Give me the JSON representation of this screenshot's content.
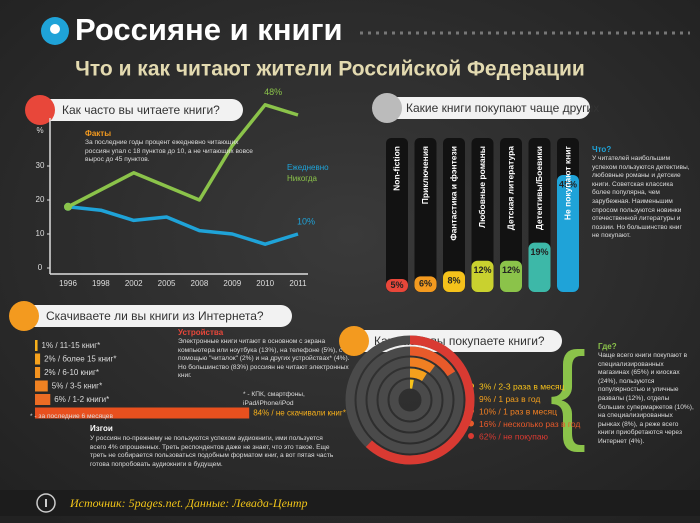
{
  "header": {
    "title": "Россияне и книги",
    "subtitle": "Что и как читают жители Российской Федерации"
  },
  "chart_data": [
    {
      "type": "line",
      "title": "Как часто вы читаете книги?",
      "y_label": "%",
      "categories": [
        "1996",
        "1998",
        "2002",
        "2005",
        "2008",
        "2009",
        "2010",
        "2011"
      ],
      "series": [
        {
          "name": "Ежедневно",
          "color": "#1fa3d8",
          "values": [
            18,
            17,
            14,
            15,
            11,
            10,
            7,
            10
          ],
          "value_labels": [
            null,
            null,
            null,
            null,
            null,
            null,
            null,
            "10%"
          ]
        },
        {
          "name": "Никогда",
          "color": "#8bc34a",
          "values": [
            18,
            23,
            28,
            24,
            20,
            36,
            48,
            45
          ],
          "value_labels": [
            null,
            null,
            null,
            null,
            null,
            null,
            "48%",
            null
          ]
        }
      ],
      "ylim": [
        0,
        50
      ],
      "yticks": [
        0,
        10,
        20,
        30
      ],
      "note_title": "Факты",
      "note": "За последние годы процент ежедневно читающих россиян упал с 18 пунктов до 10, а не читающих вовсе вырос до 45 пунктов."
    },
    {
      "type": "bar",
      "title": "Какие книги покупают чаще других",
      "categories": [
        "Non-fiction",
        "Приключения",
        "Фантастика и фэнтези",
        "Любовные романы",
        "Детская литература",
        "Детективы/Боевики",
        "Не покупают книг"
      ],
      "values": [
        5,
        6,
        8,
        12,
        12,
        19,
        45
      ],
      "value_labels": [
        "5%",
        "6%",
        "8%",
        "12%",
        "12%",
        "19%",
        "45%"
      ],
      "colors": [
        "#e8473a",
        "#f39a1f",
        "#f5c21b",
        "#c9d12f",
        "#8bc34a",
        "#3db8a8",
        "#1fa3d8"
      ],
      "note_title": "Что?",
      "note": "У читателей наибольшим успехом пользуются детективы, любовные романы и детские книги. Советская классика более популярна, чем зарубежная. Наименьшим спросом пользуются новинки отечественной литературы и поэзии. Но большинство книг не покупают."
    },
    {
      "type": "bar",
      "horizontal": true,
      "title": "Скачиваете ли вы книги из Интернета?",
      "categories": [
        "1% / 11-15 книг*",
        "2% / более 15 книг*",
        "2% / 6-10 книг*",
        "5% / 3-5 книг*",
        "6% / 1-2 книги*",
        "84% / не скачивали книг*"
      ],
      "values": [
        1,
        2,
        2,
        5,
        6,
        84
      ],
      "colors": [
        "#f7b01b",
        "#f6a21d",
        "#f39320",
        "#f08222",
        "#ec6c24",
        "#e8501e"
      ],
      "footnote": "* - за последние 6 месяцев",
      "devices_title": "Устройства",
      "devices": "Электронные книги читают в основном с экрана компьютера или ноутбука (13%), на телефоне (5%), с помощью \"читалок\" (2%) и на других устройствах* (4%). Но большинство (83%) россиян не читают электронных книг.",
      "devices_footnote": "* - КПК, смартфоны, iPad/iPhone/iPod",
      "outcasts_title": "Изгои",
      "outcasts": "У россиян по-прежнему не пользуются успехом аудиокниги, ими пользуется всего 4% опрошенных. Треть респондентов даже не знает, что это такое. Еще треть не собирается пользоваться подобным форматом книг, а вот пятая часть готова попробовать аудиокниги в будущем."
    },
    {
      "type": "donut",
      "title": "Как часто вы покупаете книги?",
      "categories": [
        "3% / 2-3 раза в месяц",
        "9% / 1 раз в год",
        "10% / 1 раз в месяц",
        "16% / несколько раз в год",
        "62% / не покупаю"
      ],
      "values": [
        3,
        9,
        10,
        16,
        62
      ],
      "colors": [
        "#f7c21b",
        "#f5a01d",
        "#f07f22",
        "#e85a2a",
        "#d93a32"
      ],
      "note_title": "Где?",
      "note": "Чаще всего книги покупают в специализированных магазинах (65%) и киосках (24%), пользуются популярностью и уличные развалы (12%), отделы больших супермаркетов (10%), на специализированных рынках (8%), а реже всего книги приобретаются через Интернет (4%)."
    }
  ],
  "footer": "Источник: 5pages.net. Данные: Левада-Центр"
}
